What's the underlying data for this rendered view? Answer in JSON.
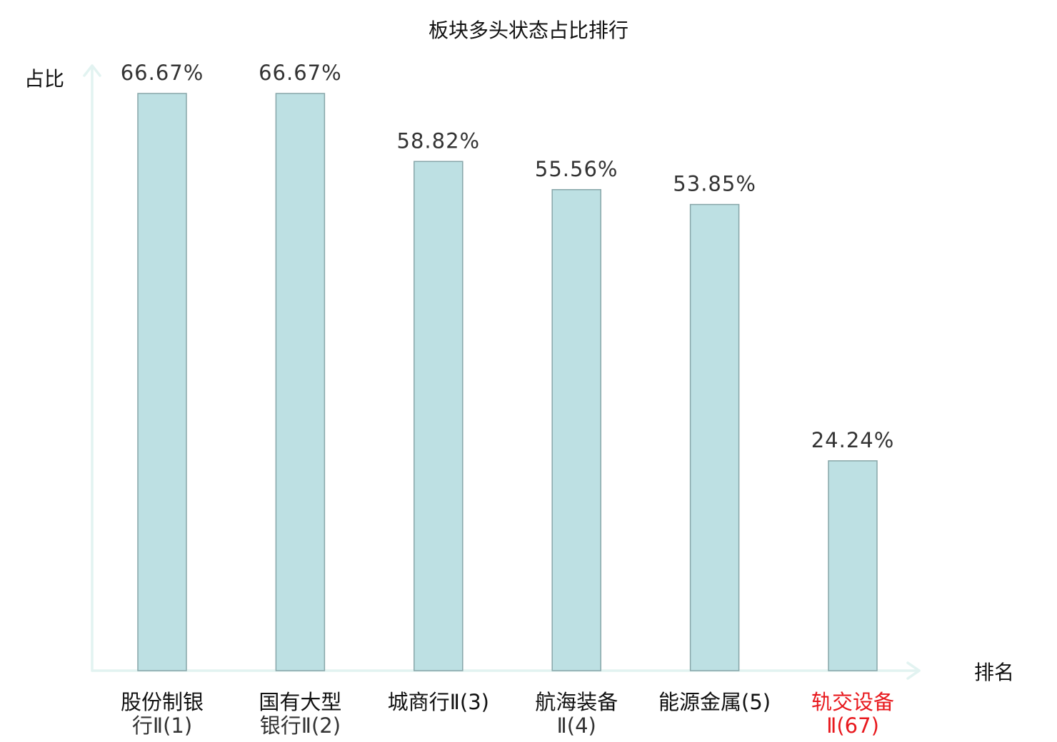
{
  "chart_data": {
    "type": "bar",
    "title": "板块多头状态占比排行",
    "ylabel": "占比",
    "xlabel": "排名",
    "categories": [
      [
        "股份制银",
        "行Ⅱ(1)"
      ],
      [
        "国有大型",
        "银行Ⅱ(2)"
      ],
      [
        "城商行Ⅱ(3)"
      ],
      [
        "航海装备",
        "Ⅱ(4)"
      ],
      [
        "能源金属(5)"
      ],
      [
        "轨交设备",
        "Ⅱ(67)"
      ]
    ],
    "values": [
      66.67,
      66.67,
      58.82,
      55.56,
      53.85,
      24.24
    ],
    "value_labels": [
      "66.67%",
      "66.67%",
      "58.82%",
      "55.56%",
      "53.85%",
      "24.24%"
    ],
    "highlighted_index": 5,
    "ylim": [
      0,
      66.67
    ],
    "grid": false,
    "colors": {
      "bar_fill": "#bde0e3",
      "bar_stroke": "#87a5a8",
      "axis": "#e2f3f1",
      "highlight_text": "#e8191e"
    }
  }
}
